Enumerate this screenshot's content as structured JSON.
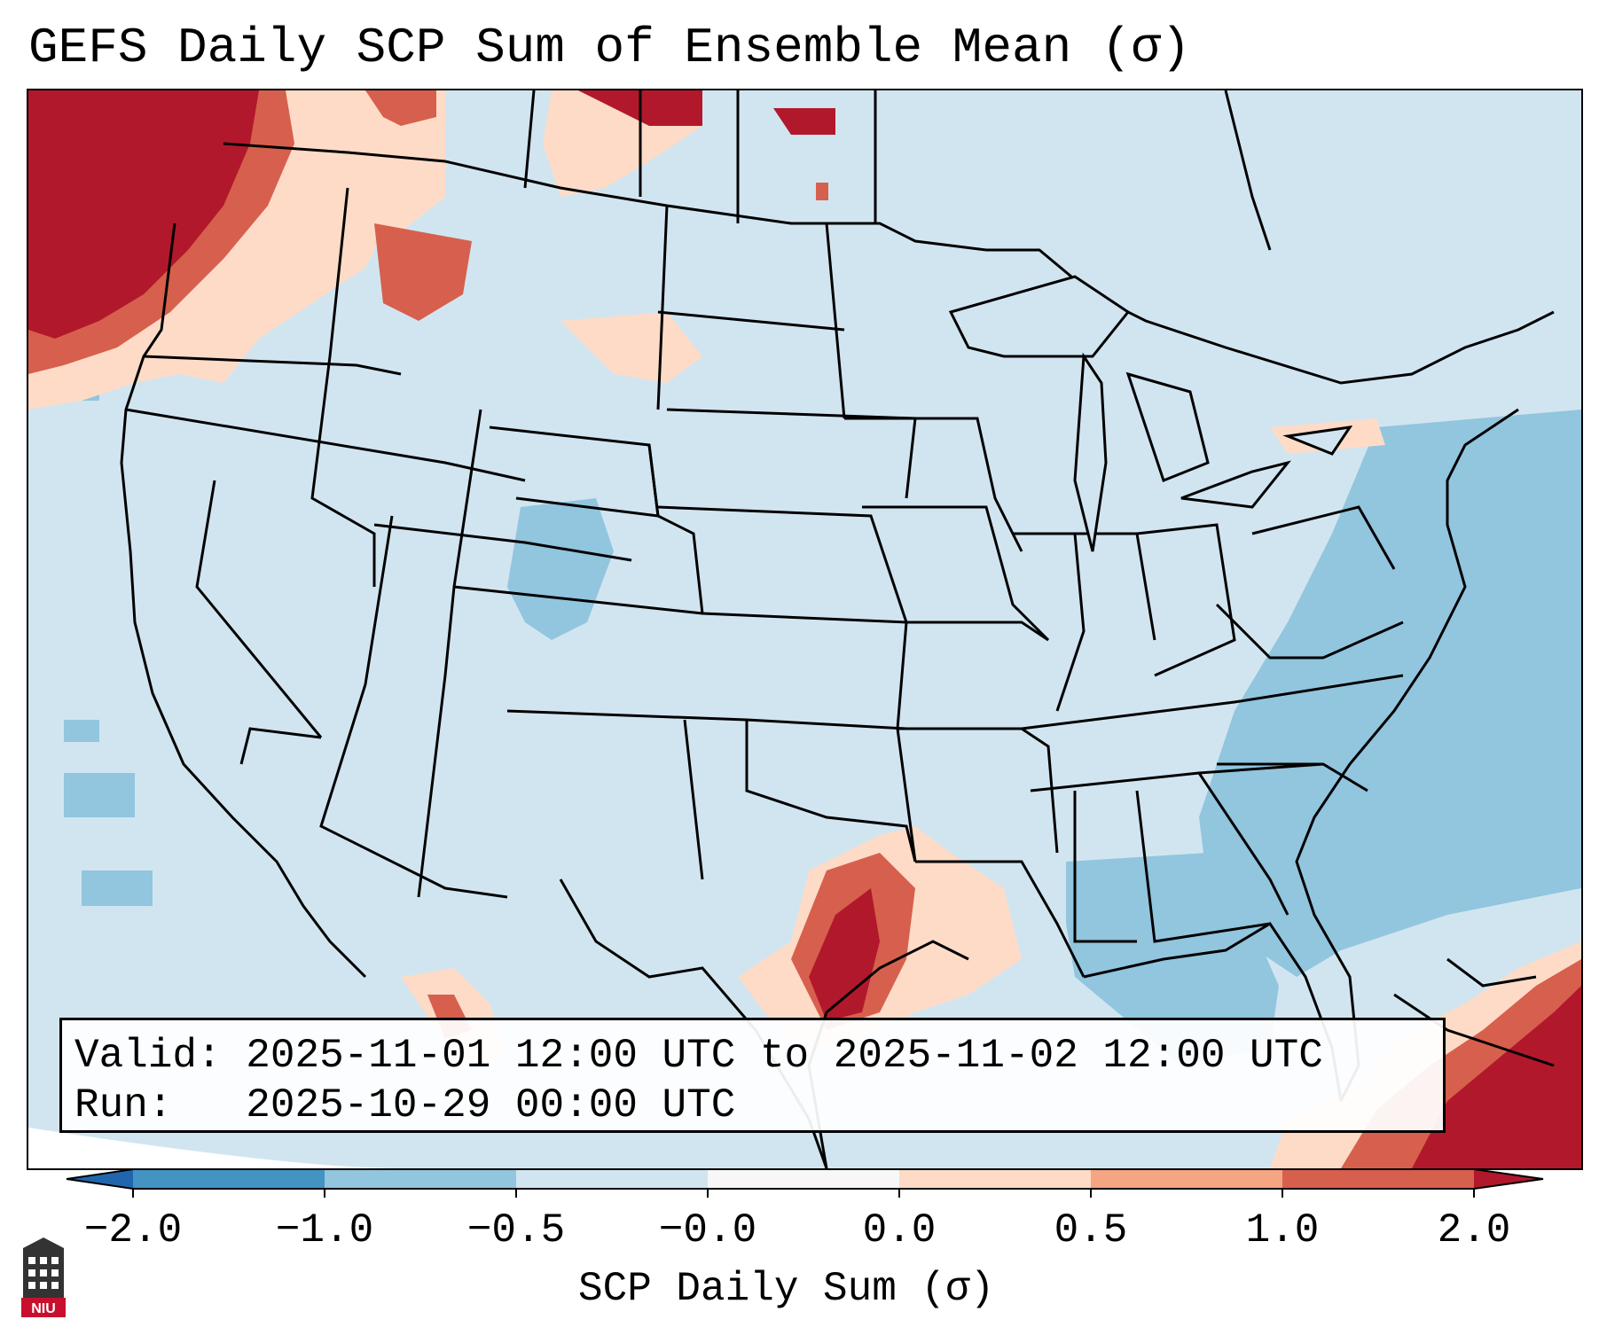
{
  "title": "GEFS Daily SCP Sum of Ensemble Mean (σ)",
  "map": {
    "region": "Continental United States, southern Canada, northern Mexico, Gulf of Mexico, western Atlantic",
    "field": "SCP daily sum anomaly (σ)",
    "features": [
      "state-borders",
      "country-borders",
      "coastlines",
      "great-lakes"
    ],
    "highlights": [
      {
        "area": "Pacific Northwest / British Columbia",
        "level": "≥ 1.0"
      },
      {
        "area": "Texas Gulf Coast",
        "level": "≥ 1.0"
      },
      {
        "area": "Bahamas / Cuba region",
        "level": "≥ 1.0"
      },
      {
        "area": "Western Atlantic off East Coast",
        "level": "-1.0 to -0.5"
      },
      {
        "area": "Northern Gulf of Mexico",
        "level": "-1.0 to -0.5"
      }
    ]
  },
  "info": {
    "valid_label": "Valid:",
    "valid_value": "2025-11-01 12:00 UTC to 2025-11-02 12:00 UTC",
    "run_label": "Run:",
    "run_value": "2025-10-29 00:00 UTC"
  },
  "colorbar": {
    "label": "SCP Daily Sum (σ)",
    "ticks": [
      "−2.0",
      "−1.0",
      "−0.5",
      "−0.0",
      "0.0",
      "0.5",
      "1.0",
      "2.0"
    ],
    "bins": [
      {
        "from": "−2.0",
        "to": "−1.0",
        "color": "#4393c3"
      },
      {
        "from": "−1.0",
        "to": "−0.5",
        "color": "#92c5de"
      },
      {
        "from": "−0.5",
        "to": "−0.0",
        "color": "#d1e5f0"
      },
      {
        "from": "−0.0",
        "to": "0.0",
        "color": "#f7f7f7"
      },
      {
        "from": "0.0",
        "to": "0.5",
        "color": "#fddbc7"
      },
      {
        "from": "0.5",
        "to": "1.0",
        "color": "#f4a582"
      },
      {
        "from": "1.0",
        "to": "2.0",
        "color": "#d6604d"
      }
    ],
    "under_color": "#2166ac",
    "over_color": "#b2182b"
  },
  "logo": {
    "text": "NIU"
  }
}
